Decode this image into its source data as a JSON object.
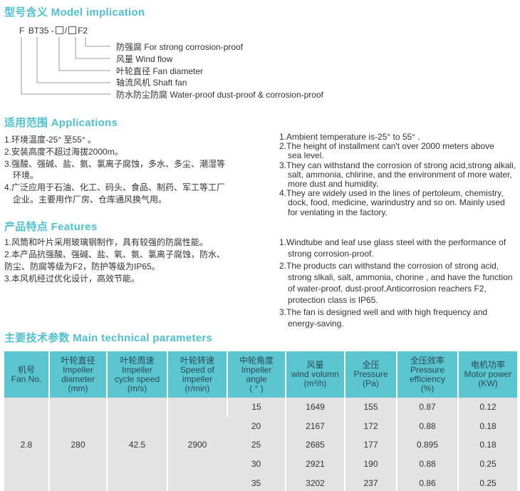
{
  "model": {
    "title": "型号含义 Model implication",
    "code": {
      "f": "F",
      "bt35": "BT35",
      "dash": "-",
      "slash": "/",
      "f2": "F2"
    },
    "legend": [
      "防强腐 For strong corrosion-proof",
      "风量 Wind flow",
      "叶轮直径 Fan diameter",
      "轴流风机 Shaft fan",
      "防水防尘防腐 Water-proof dust-proof & corrosion-proof"
    ]
  },
  "applications": {
    "title": "适用范围 Applications",
    "cn": [
      "1.环境温度-25°  至55°  。",
      "2.安装高度不超过海拔2000m。",
      "3.强酸、强碱、盐、氨、氯离子腐蚀，多水、多尘、潮湿等",
      "环境。",
      "4.广泛应用于石油、化工、码头、食品、制药、军工等工厂",
      "企业。主要用作厂房、仓库通风换气用。"
    ],
    "en": [
      "1.Ambient temperature is-25°  to 55° .",
      "2.The  height of installment can't over  2000 meters  above",
      "sea level.",
      "3.They can withstand the corrosion of strong acid,strong alkali,",
      "salt, ammonia, chlirine,  and the environment of more water,",
      "more  dust and humidity.",
      "4.They  are widely  used in the lines of pertoleum, chemistry,",
      "dock, food, medicine, warindustry and so on. Mainly used",
      "for venlating in the factory."
    ]
  },
  "features": {
    "title": "产品特点 Features",
    "cn": [
      "1.风筒和叶片采用玻璃钢制作，具有较强的防腐性能。",
      "2.本产品抗强酸、强碱、盐、氧、氨、氯离子腐蚀，防水、",
      "防尘、防腐等级为F2，防护等级为IP65。",
      "3.本风机经过优化设计，高效节能。"
    ],
    "en": [
      "1.Windtube and leaf use glass steel with the performance of",
      "strong corrosion-proof.",
      "2.The products can withstand the corrosion of strong acid,",
      "strong slkali, salt, ammonia, chorine , and have the function",
      "of water-proof, dust-proof.Anticorrosion reachers F2,",
      "protection class is IP65.",
      "3.The fan is designed well and with high frequency and",
      "energy-saving."
    ]
  },
  "params": {
    "title": "主要技术参数 Main technical parameters",
    "headers": [
      [
        "机号",
        "Fan No."
      ],
      [
        "叶轮直径",
        "Impeller",
        "diameter",
        "(mm)"
      ],
      [
        "叶轮周速",
        "Impeller",
        "cycle speed",
        "(m/s)"
      ],
      [
        "叶轮转速",
        "Speed of",
        "impeller",
        "(r/min)"
      ],
      [
        "中轮角度",
        "Impeller",
        "angle",
        "( ° )"
      ],
      [
        "风量",
        "wind volumn",
        "(m³/h)"
      ],
      [
        "全压",
        "Pressure",
        "(Pa)"
      ],
      [
        "全压效率",
        "Pressure",
        "efficiency",
        "(%)"
      ],
      [
        "电机功率",
        "Motor power",
        "(KW)"
      ]
    ],
    "fan_no": "2.8",
    "diameter": "280",
    "cycle_speed": "42.5",
    "speed": "2900",
    "rows": [
      [
        "15",
        "1649",
        "155",
        "0.87",
        "0.12"
      ],
      [
        "20",
        "2167",
        "172",
        "0.88",
        "0.18"
      ],
      [
        "25",
        "2685",
        "177",
        "0.895",
        "0.18"
      ],
      [
        "30",
        "2921",
        "190",
        "0.88",
        "0.25"
      ],
      [
        "35",
        "3202",
        "237",
        "0.86",
        "0.25"
      ]
    ]
  },
  "colors": {
    "accent": "#4fc0d0",
    "table_header": "#5bc5d0",
    "table_body": "#e3e3e3"
  }
}
